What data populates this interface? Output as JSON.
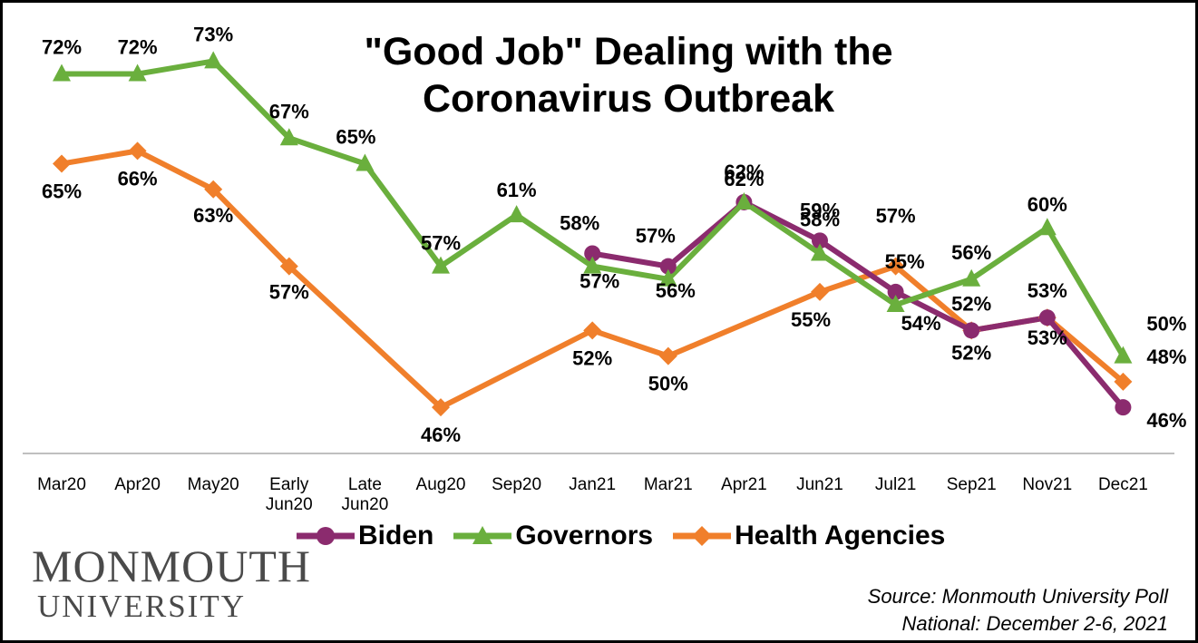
{
  "chart_data": {
    "type": "line",
    "title": "\"Good Job\" Dealing with the Coronavirus Outbreak",
    "categories": [
      [
        "Mar20"
      ],
      [
        "Apr20"
      ],
      [
        "May20"
      ],
      [
        "Early",
        "Jun20"
      ],
      [
        "Late",
        "Jun20"
      ],
      [
        "Aug20"
      ],
      [
        "Sep20"
      ],
      [
        "Jan21"
      ],
      [
        "Mar21"
      ],
      [
        "Apr21"
      ],
      [
        "Jun21"
      ],
      [
        "Jul21"
      ],
      [
        "Sep21"
      ],
      [
        "Nov21"
      ],
      [
        "Dec21"
      ]
    ],
    "ylim": [
      40,
      76
    ],
    "grid": false,
    "legend_position": "bottom",
    "series": [
      {
        "name": "Biden",
        "color": "#8B2B6E",
        "marker": "circle",
        "values": [
          null,
          null,
          null,
          null,
          null,
          null,
          null,
          58,
          57,
          62,
          59,
          55,
          52,
          53,
          46
        ],
        "labels": [
          null,
          null,
          null,
          null,
          null,
          null,
          null,
          "58%",
          "57%",
          "62%",
          "59%",
          "55%",
          "52%",
          "53%",
          "46%"
        ]
      },
      {
        "name": "Governors",
        "color": "#6AAF3D",
        "marker": "triangle",
        "values": [
          72,
          72,
          73,
          67,
          65,
          57,
          61,
          57,
          56,
          62,
          58,
          54,
          56,
          60,
          50
        ],
        "labels": [
          "72%",
          "72%",
          "73%",
          "67%",
          "65%",
          "57%",
          "61%",
          "57%",
          "56%",
          "62%",
          "58%",
          "54%",
          "56%",
          "60%",
          "50%"
        ]
      },
      {
        "name": "Health Agencies",
        "color": "#F07F2B",
        "marker": "diamond",
        "values": [
          65,
          66,
          63,
          57,
          null,
          46,
          null,
          52,
          50,
          null,
          55,
          57,
          52,
          53,
          48
        ],
        "labels": [
          "65%",
          "66%",
          "63%",
          "57%",
          null,
          "46%",
          null,
          "52%",
          "50%",
          null,
          "55%",
          "57%",
          "52%",
          "53%",
          "48%"
        ]
      }
    ]
  },
  "logo": {
    "line1": "MONMOUTH",
    "line2": "UNIVERSITY"
  },
  "source": {
    "line1": "Source:  Monmouth University Poll",
    "line2": "National: December 2-6, 2021"
  }
}
